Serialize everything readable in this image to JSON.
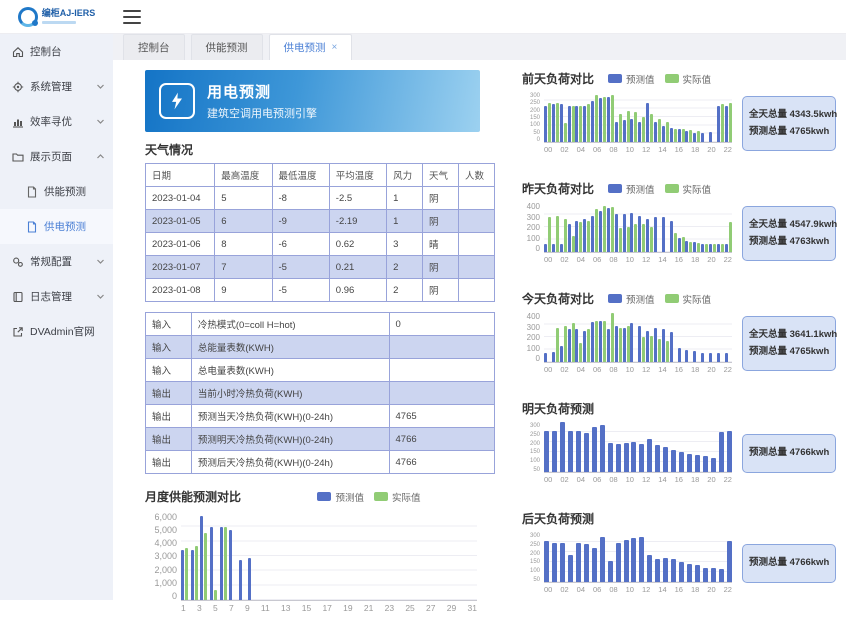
{
  "header": {
    "logo_title": "编柜AJ-IERS"
  },
  "sidebar": {
    "items": [
      {
        "icon": "home-icon",
        "label": "控制台"
      },
      {
        "icon": "gear-icon",
        "label": "系统管理",
        "chevron": "down"
      },
      {
        "icon": "chart-icon",
        "label": "效率寻优",
        "chevron": "down"
      },
      {
        "icon": "folder-icon",
        "label": "展示页面",
        "chevron": "up",
        "children": [
          {
            "icon": "file-icon",
            "label": "供能预测",
            "active": false
          },
          {
            "icon": "file-icon",
            "label": "供电预测",
            "active": true
          }
        ]
      },
      {
        "icon": "gears-icon",
        "label": "常规配置",
        "chevron": "down"
      },
      {
        "icon": "book-icon",
        "label": "日志管理",
        "chevron": "down"
      },
      {
        "icon": "external-link-icon",
        "label": "DVAdmin官网"
      }
    ]
  },
  "tabs": [
    {
      "label": "控制台",
      "active": false,
      "closable": false
    },
    {
      "label": "供能预测",
      "active": false,
      "closable": false
    },
    {
      "label": "供电预测",
      "active": true,
      "closable": true
    }
  ],
  "banner": {
    "title": "用电预测",
    "subtitle": "建筑空调用电预测引擎"
  },
  "weather": {
    "title": "天气情况",
    "columns": [
      "日期",
      "最高温度",
      "最低温度",
      "平均温度",
      "风力",
      "天气",
      "人数"
    ],
    "rows": [
      [
        "2023-01-04",
        "5",
        "-8",
        "-2.5",
        "1",
        "阴",
        ""
      ],
      [
        "2023-01-05",
        "6",
        "-9",
        "-2.19",
        "1",
        "阴",
        ""
      ],
      [
        "2023-01-06",
        "8",
        "-6",
        "0.62",
        "3",
        "晴",
        ""
      ],
      [
        "2023-01-07",
        "7",
        "-5",
        "0.21",
        "2",
        "阴",
        ""
      ],
      [
        "2023-01-08",
        "9",
        "-5",
        "0.96",
        "2",
        "阴",
        ""
      ]
    ]
  },
  "io_table": {
    "rows": [
      {
        "dir": "输入",
        "desc": "冷热模式(0=coll H=hot)",
        "value": "0"
      },
      {
        "dir": "输入",
        "desc": "总能量表数(KWH)",
        "value": ""
      },
      {
        "dir": "输入",
        "desc": "总电量表数(KWH)",
        "value": ""
      },
      {
        "dir": "输出",
        "desc": "当前小时冷热负荷(KWH)",
        "value": ""
      },
      {
        "dir": "输出",
        "desc": "预测当天冷热负荷(KWH)(0-24h)",
        "value": "4765"
      },
      {
        "dir": "输出",
        "desc": "预测明天冷热负荷(KWH)(0-24h)",
        "value": "4766"
      },
      {
        "dir": "输出",
        "desc": "预测后天冷热负荷(KWH)(0-24h)",
        "value": "4766"
      }
    ]
  },
  "monthly_chart": {
    "type": "bar",
    "title": "月度供能预测对比",
    "legend": [
      {
        "label": "预测值",
        "color": "#5470c6"
      },
      {
        "label": "实际值",
        "color": "#91cc75"
      }
    ],
    "y_ticks": [
      "6,000",
      "5,000",
      "4,000",
      "3,000",
      "2,000",
      "1,000",
      "0"
    ],
    "y_max": 6000,
    "x_labels": [
      "1",
      "3",
      "5",
      "7",
      "9",
      "11",
      "13",
      "15",
      "17",
      "19",
      "21",
      "23",
      "25",
      "27",
      "29",
      "31"
    ],
    "series": [
      {
        "name": "预测值",
        "color": "#5470c6",
        "values": [
          3400,
          3400,
          5700,
          5000,
          5000,
          4750,
          2750,
          2850,
          0,
          0,
          0,
          0,
          0,
          0,
          0,
          0,
          0,
          0,
          0,
          0,
          0,
          0,
          0,
          0,
          0,
          0,
          0,
          0,
          0,
          0,
          0
        ]
      },
      {
        "name": "实际值",
        "color": "#91cc75",
        "values": [
          3550,
          3700,
          4550,
          650,
          4950,
          0,
          0,
          0,
          0,
          0,
          0,
          0,
          0,
          0,
          0,
          0,
          0,
          0,
          0,
          0,
          0,
          0,
          0,
          0,
          0,
          0,
          0,
          0,
          0,
          0,
          0
        ]
      }
    ]
  },
  "right_charts": [
    {
      "type": "bar",
      "title": "前天负荷对比",
      "legend": [
        {
          "label": "预测值",
          "color": "#5470c6"
        },
        {
          "label": "实际值",
          "color": "#91cc75"
        }
      ],
      "y_ticks": [
        "300",
        "250",
        "200",
        "150",
        "100",
        "50",
        "0"
      ],
      "y_max": 320,
      "x_labels": [
        "00",
        "02",
        "04",
        "06",
        "08",
        "10",
        "12",
        "14",
        "16",
        "18",
        "20",
        "22"
      ],
      "series": [
        {
          "name": "预测值",
          "color": "#5470c6",
          "values": [
            230,
            240,
            240,
            230,
            230,
            230,
            260,
            280,
            290,
            130,
            140,
            150,
            130,
            250,
            130,
            100,
            90,
            80,
            70,
            60,
            55,
            65,
            230,
            230
          ]
        },
        {
          "name": "实际值",
          "color": "#91cc75",
          "values": [
            250,
            250,
            120,
            230,
            230,
            240,
            300,
            290,
            300,
            180,
            200,
            190,
            160,
            180,
            150,
            130,
            80,
            80,
            75,
            70,
            0,
            0,
            240,
            250
          ]
        }
      ],
      "summary": [
        {
          "label": "全天总量",
          "value": "4343.5kwh"
        },
        {
          "label": "预测总量",
          "value": "4765kwh"
        }
      ]
    },
    {
      "type": "bar",
      "title": "昨天负荷对比",
      "legend": [
        {
          "label": "预测值",
          "color": "#5470c6"
        },
        {
          "label": "实际值",
          "color": "#91cc75"
        }
      ],
      "y_ticks": [
        "400",
        "300",
        "200",
        "100",
        "0"
      ],
      "y_max": 400,
      "x_labels": [
        "00",
        "02",
        "04",
        "06",
        "08",
        "10",
        "12",
        "14",
        "16",
        "18",
        "20",
        "22"
      ],
      "series": [
        {
          "name": "预测值",
          "color": "#5470c6",
          "values": [
            60,
            60,
            60,
            220,
            250,
            260,
            290,
            330,
            350,
            300,
            300,
            310,
            290,
            260,
            280,
            280,
            250,
            110,
            90,
            80,
            65,
            60,
            60,
            60
          ]
        },
        {
          "name": "实际值",
          "color": "#91cc75",
          "values": [
            280,
            290,
            260,
            130,
            240,
            250,
            340,
            370,
            360,
            190,
            200,
            220,
            220,
            200,
            0,
            0,
            150,
            120,
            80,
            70,
            65,
            60,
            60,
            240
          ]
        }
      ],
      "summary": [
        {
          "label": "全天总量",
          "value": "4547.9kwh"
        },
        {
          "label": "预测总量",
          "value": "4763kwh"
        }
      ]
    },
    {
      "type": "bar",
      "title": "今天负荷对比",
      "legend": [
        {
          "label": "预测值",
          "color": "#5470c6"
        },
        {
          "label": "实际值",
          "color": "#91cc75"
        }
      ],
      "y_ticks": [
        "400",
        "300",
        "200",
        "100",
        "0"
      ],
      "y_max": 400,
      "x_labels": [
        "00",
        "02",
        "04",
        "06",
        "08",
        "10",
        "12",
        "14",
        "16",
        "18",
        "20",
        "22"
      ],
      "series": [
        {
          "name": "预测值",
          "color": "#5470c6",
          "values": [
            75,
            80,
            130,
            260,
            260,
            250,
            320,
            330,
            260,
            290,
            270,
            310,
            290,
            250,
            270,
            265,
            240,
            110,
            95,
            85,
            75,
            75,
            70,
            75
          ]
        },
        {
          "name": "实际值",
          "color": "#91cc75",
          "values": [
            0,
            270,
            290,
            310,
            150,
            260,
            330,
            330,
            390,
            270,
            290,
            0,
            200,
            210,
            180,
            170,
            0,
            0,
            0,
            0,
            0,
            0,
            0,
            0
          ]
        }
      ],
      "summary": [
        {
          "label": "全天总量",
          "value": "3641.1kwh"
        },
        {
          "label": "预测总量",
          "value": "4765kwh"
        }
      ]
    },
    {
      "type": "bar",
      "title": "明天负荷预测",
      "legend": [],
      "y_ticks": [
        "300",
        "250",
        "200",
        "150",
        "100",
        "50"
      ],
      "y_max": 330,
      "x_labels": [
        "00",
        "02",
        "04",
        "06",
        "08",
        "10",
        "12",
        "14",
        "16",
        "18",
        "20",
        "22"
      ],
      "series": [
        {
          "name": "预测值",
          "color": "#5470c6",
          "values": [
            270,
            270,
            330,
            270,
            270,
            260,
            295,
            310,
            190,
            185,
            190,
            200,
            185,
            215,
            175,
            165,
            145,
            130,
            120,
            110,
            105,
            95,
            265,
            270
          ]
        }
      ],
      "summary": [
        {
          "label": "预测总量",
          "value": "4766kwh"
        }
      ]
    },
    {
      "type": "bar",
      "title": "后天负荷预测",
      "legend": [],
      "y_ticks": [
        "300",
        "250",
        "200",
        "150",
        "100",
        "50"
      ],
      "y_max": 330,
      "x_labels": [
        "00",
        "02",
        "04",
        "06",
        "08",
        "10",
        "12",
        "14",
        "16",
        "18",
        "20",
        "22"
      ],
      "series": [
        {
          "name": "预测值",
          "color": "#5470c6",
          "values": [
            270,
            260,
            260,
            175,
            255,
            250,
            225,
            300,
            140,
            255,
            280,
            290,
            300,
            175,
            150,
            160,
            155,
            130,
            120,
            110,
            95,
            90,
            85,
            270
          ]
        }
      ],
      "summary": [
        {
          "label": "预测总量",
          "value": "4766kwh"
        }
      ]
    }
  ]
}
